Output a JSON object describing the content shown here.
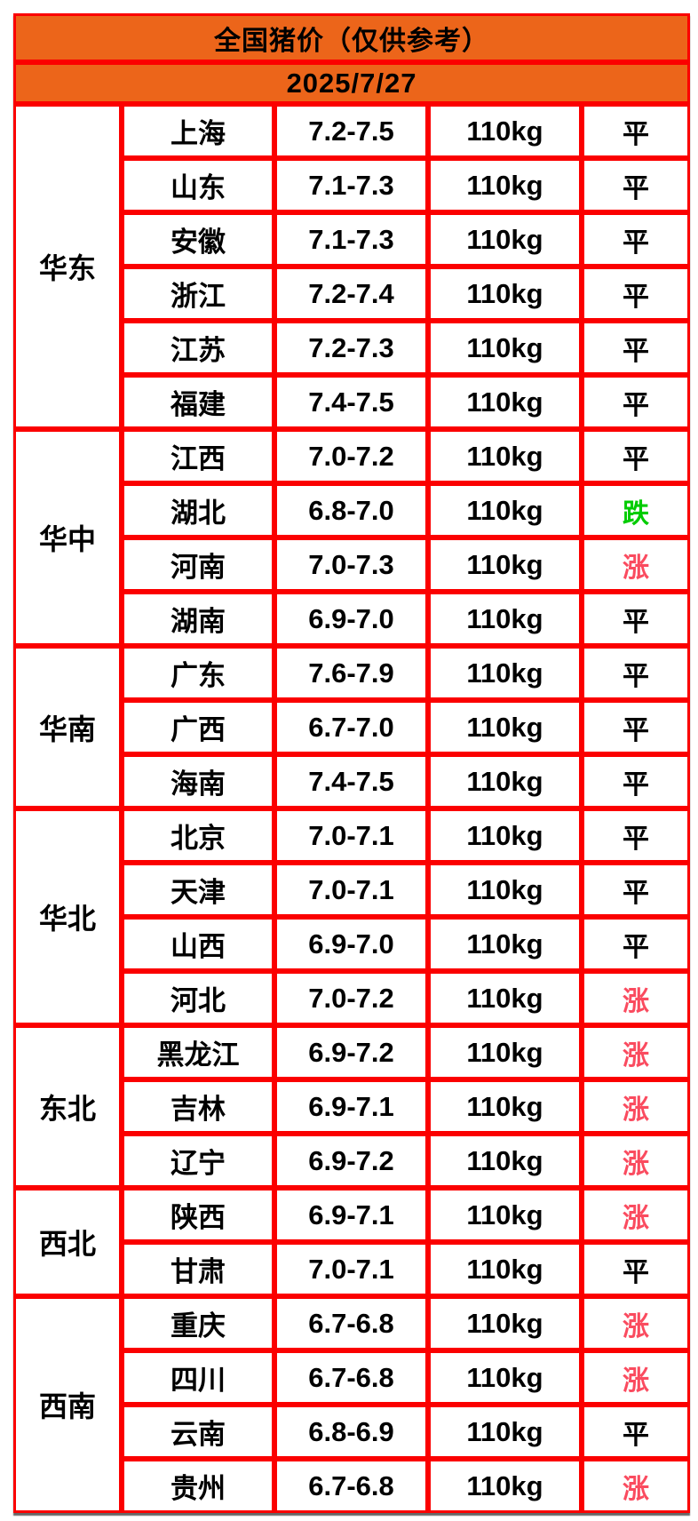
{
  "header": {
    "title": "全国猪价（仅供参考）",
    "date": "2025/7/27"
  },
  "colors": {
    "banner_orange": "#ec651a",
    "border_red": "#fb0000",
    "trend_flat": "#000000",
    "trend_up": "#fa4b5f",
    "trend_down": "#00cc00"
  },
  "trend_colors": {
    "平": "#000000",
    "涨": "#fa4b5f",
    "跌": "#00cc00"
  },
  "regions": [
    {
      "name": "华东",
      "rows": [
        {
          "province": "上海",
          "price": "7.2-7.5",
          "weight": "110kg",
          "trend": "平"
        },
        {
          "province": "山东",
          "price": "7.1-7.3",
          "weight": "110kg",
          "trend": "平"
        },
        {
          "province": "安徽",
          "price": "7.1-7.3",
          "weight": "110kg",
          "trend": "平"
        },
        {
          "province": "浙江",
          "price": "7.2-7.4",
          "weight": "110kg",
          "trend": "平"
        },
        {
          "province": "江苏",
          "price": "7.2-7.3",
          "weight": "110kg",
          "trend": "平"
        },
        {
          "province": "福建",
          "price": "7.4-7.5",
          "weight": "110kg",
          "trend": "平"
        }
      ]
    },
    {
      "name": "华中",
      "rows": [
        {
          "province": "江西",
          "price": "7.0-7.2",
          "weight": "110kg",
          "trend": "平"
        },
        {
          "province": "湖北",
          "price": "6.8-7.0",
          "weight": "110kg",
          "trend": "跌"
        },
        {
          "province": "河南",
          "price": "7.0-7.3",
          "weight": "110kg",
          "trend": "涨"
        },
        {
          "province": "湖南",
          "price": "6.9-7.0",
          "weight": "110kg",
          "trend": "平"
        }
      ]
    },
    {
      "name": "华南",
      "rows": [
        {
          "province": "广东",
          "price": "7.6-7.9",
          "weight": "110kg",
          "trend": "平"
        },
        {
          "province": "广西",
          "price": "6.7-7.0",
          "weight": "110kg",
          "trend": "平"
        },
        {
          "province": "海南",
          "price": "7.4-7.5",
          "weight": "110kg",
          "trend": "平"
        }
      ]
    },
    {
      "name": "华北",
      "rows": [
        {
          "province": "北京",
          "price": "7.0-7.1",
          "weight": "110kg",
          "trend": "平"
        },
        {
          "province": "天津",
          "price": "7.0-7.1",
          "weight": "110kg",
          "trend": "平"
        },
        {
          "province": "山西",
          "price": "6.9-7.0",
          "weight": "110kg",
          "trend": "平"
        },
        {
          "province": "河北",
          "price": "7.0-7.2",
          "weight": "110kg",
          "trend": "涨"
        }
      ]
    },
    {
      "name": "东北",
      "rows": [
        {
          "province": "黑龙江",
          "price": "6.9-7.2",
          "weight": "110kg",
          "trend": "涨"
        },
        {
          "province": "吉林",
          "price": "6.9-7.1",
          "weight": "110kg",
          "trend": "涨"
        },
        {
          "province": "辽宁",
          "price": "6.9-7.2",
          "weight": "110kg",
          "trend": "涨"
        }
      ]
    },
    {
      "name": "西北",
      "rows": [
        {
          "province": "陕西",
          "price": "6.9-7.1",
          "weight": "110kg",
          "trend": "涨"
        },
        {
          "province": "甘肃",
          "price": "7.0-7.1",
          "weight": "110kg",
          "trend": "平"
        }
      ]
    },
    {
      "name": "西南",
      "rows": [
        {
          "province": "重庆",
          "price": "6.7-6.8",
          "weight": "110kg",
          "trend": "涨"
        },
        {
          "province": "四川",
          "price": "6.7-6.8",
          "weight": "110kg",
          "trend": "涨"
        },
        {
          "province": "云南",
          "price": "6.8-6.9",
          "weight": "110kg",
          "trend": "平"
        },
        {
          "province": "贵州",
          "price": "6.7-6.8",
          "weight": "110kg",
          "trend": "涨"
        }
      ]
    }
  ]
}
